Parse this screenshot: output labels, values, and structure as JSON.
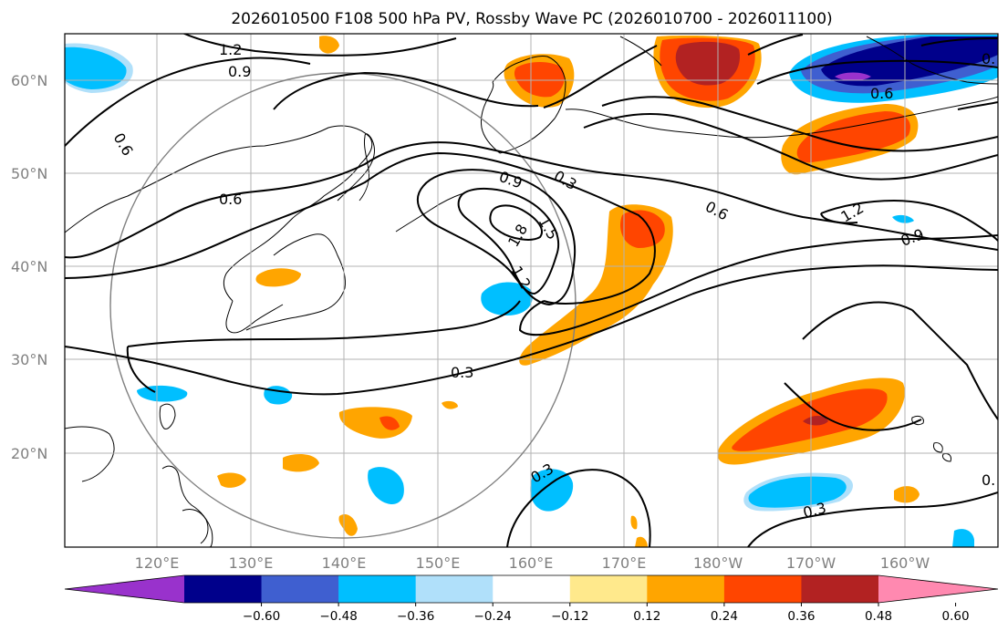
{
  "title": "2026010500 F108 500 hPa PV, Rossby Wave PC (2026010700 - 2026011100)",
  "map": {
    "lon_ticks": [
      "120°E",
      "130°E",
      "140°E",
      "150°E",
      "160°E",
      "170°E",
      "180°W",
      "170°W",
      "160°W"
    ],
    "lat_ticks": [
      "60°N",
      "50°N",
      "40°N",
      "30°N",
      "20°N"
    ],
    "contour_labels": [
      "1.2",
      "0.9",
      "0.6",
      "0.6",
      "0.3",
      "0.9",
      "1.5",
      "1.8",
      "1.2",
      "0.6",
      "0.3",
      "1.2",
      "0.9",
      "0.3",
      "0.3",
      "0.6",
      "0.",
      "0."
    ]
  },
  "colorbar": {
    "ticks": [
      "−0.60",
      "−0.48",
      "−0.36",
      "−0.24",
      "−0.12",
      "0.12",
      "0.24",
      "0.36",
      "0.48",
      "0.60"
    ],
    "colors": [
      "#9932cc",
      "#00008b",
      "#3f5fd0",
      "#00bfff",
      "#b0e0fa",
      "#ffffff",
      "#ffe98c",
      "#ffa500",
      "#ff4500",
      "#b22222",
      "#ff89b0"
    ]
  },
  "colors": {
    "negative_strong": "#00008b",
    "negative_mid": "#3f5fd0",
    "negative_weak": "#00bfff",
    "negative_faint": "#b0e0fa",
    "positive_faint": "#ffe98c",
    "positive_weak": "#ffa500",
    "positive_mid": "#ff4500",
    "positive_strong": "#b22222",
    "extreme_low": "#9932cc",
    "extreme_high": "#ff89b0"
  }
}
